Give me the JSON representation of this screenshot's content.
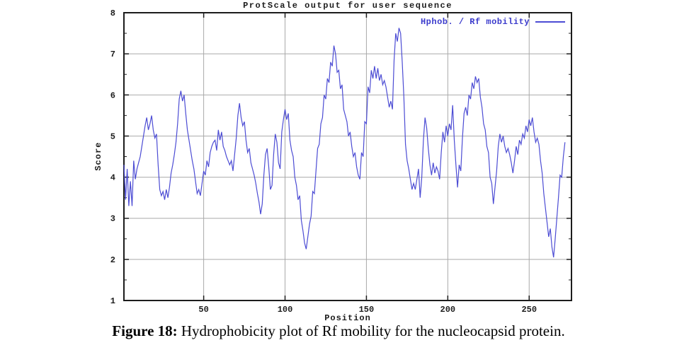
{
  "title": "ProtScale output for user sequence",
  "legend": {
    "label": "Hphob. / Rf mobility"
  },
  "axes": {
    "ylabel": "Score",
    "xlabel": "Position"
  },
  "caption": {
    "label": "Figure 18:",
    "text": " Hydrophobicity plot of Rf mobility for the nucleocapsid protein."
  },
  "colors": {
    "line": "#4c4cd4",
    "legend_text": "#3a3acc",
    "grid": "#a9a9a9",
    "frame": "#1c1c1c",
    "background": "#ffffff"
  },
  "chart_data": {
    "type": "line",
    "title": "ProtScale output for user sequence",
    "xlabel": "Position",
    "ylabel": "Score",
    "xlim": [
      1,
      276
    ],
    "ylim": [
      1,
      8
    ],
    "xticks": [
      50,
      100,
      150,
      200,
      250
    ],
    "yticks": [
      1,
      2,
      3,
      4,
      5,
      6,
      7,
      8
    ],
    "y_minor_step": 0.5,
    "grid": true,
    "legend_position": "top-right-inside",
    "series": [
      {
        "name": "Hphob. / Rf mobility",
        "x_start": 1,
        "x_step": 1,
        "values": [
          4.3,
          3.45,
          4.2,
          3.3,
          3.9,
          3.3,
          4.4,
          3.95,
          4.2,
          4.35,
          4.5,
          4.75,
          5.0,
          5.25,
          5.45,
          5.15,
          5.3,
          5.5,
          5.15,
          4.95,
          5.05,
          4.3,
          3.7,
          3.55,
          3.65,
          3.45,
          3.7,
          3.5,
          3.75,
          4.1,
          4.3,
          4.55,
          4.85,
          5.3,
          5.9,
          6.1,
          5.85,
          6.0,
          5.55,
          5.15,
          4.9,
          4.65,
          4.4,
          4.2,
          3.9,
          3.6,
          3.7,
          3.55,
          3.85,
          4.15,
          4.05,
          4.4,
          4.25,
          4.6,
          4.75,
          4.85,
          4.9,
          4.65,
          5.15,
          4.9,
          5.1,
          4.75,
          4.65,
          4.5,
          4.4,
          4.3,
          4.4,
          4.15,
          4.55,
          4.95,
          5.5,
          5.8,
          5.45,
          5.25,
          5.35,
          4.9,
          4.6,
          4.7,
          4.35,
          4.2,
          4.05,
          3.85,
          3.6,
          3.4,
          3.1,
          3.35,
          4.05,
          4.55,
          4.7,
          4.25,
          3.7,
          3.8,
          4.55,
          5.05,
          4.85,
          4.35,
          4.2,
          5.1,
          5.4,
          5.65,
          5.4,
          5.55,
          4.9,
          4.65,
          4.5,
          4.0,
          3.8,
          3.45,
          3.55,
          2.95,
          2.7,
          2.4,
          2.25,
          2.55,
          2.85,
          3.05,
          3.65,
          3.6,
          4.15,
          4.7,
          4.8,
          5.3,
          5.45,
          6.0,
          5.9,
          6.4,
          6.3,
          6.8,
          6.7,
          7.2,
          7.0,
          6.55,
          6.6,
          6.15,
          6.25,
          5.65,
          5.5,
          5.35,
          5.0,
          5.1,
          4.75,
          4.5,
          4.6,
          4.25,
          4.05,
          3.95,
          4.6,
          4.5,
          5.35,
          5.3,
          6.2,
          6.05,
          6.6,
          6.4,
          6.7,
          6.4,
          6.65,
          6.35,
          6.5,
          6.25,
          6.35,
          6.2,
          5.95,
          5.7,
          5.85,
          5.65,
          6.85,
          7.5,
          7.3,
          7.63,
          7.5,
          6.8,
          5.95,
          4.8,
          4.4,
          4.2,
          3.95,
          3.7,
          3.85,
          3.7,
          3.95,
          4.2,
          3.5,
          4.0,
          4.9,
          5.45,
          5.2,
          4.7,
          4.3,
          4.05,
          4.35,
          4.1,
          4.25,
          4.15,
          3.95,
          4.6,
          5.1,
          4.85,
          5.25,
          5.0,
          5.3,
          5.15,
          5.75,
          4.9,
          4.3,
          3.75,
          4.3,
          4.15,
          4.95,
          5.55,
          5.7,
          5.5,
          6.0,
          5.9,
          6.3,
          6.15,
          6.45,
          6.3,
          6.4,
          5.95,
          5.7,
          5.3,
          5.15,
          4.75,
          4.6,
          4.0,
          3.85,
          3.35,
          3.75,
          4.15,
          4.75,
          5.05,
          4.85,
          5.0,
          4.75,
          4.6,
          4.7,
          4.55,
          4.35,
          4.1,
          4.4,
          4.75,
          4.55,
          4.9,
          4.8,
          5.05,
          4.95,
          5.25,
          5.1,
          5.4,
          5.25,
          5.45,
          5.1,
          4.85,
          4.95,
          4.8,
          4.4,
          4.1,
          3.6,
          3.25,
          2.9,
          2.55,
          2.75,
          2.3,
          2.05,
          2.5,
          3.0,
          3.5,
          4.05,
          4.0,
          4.5,
          4.85
        ]
      }
    ]
  }
}
